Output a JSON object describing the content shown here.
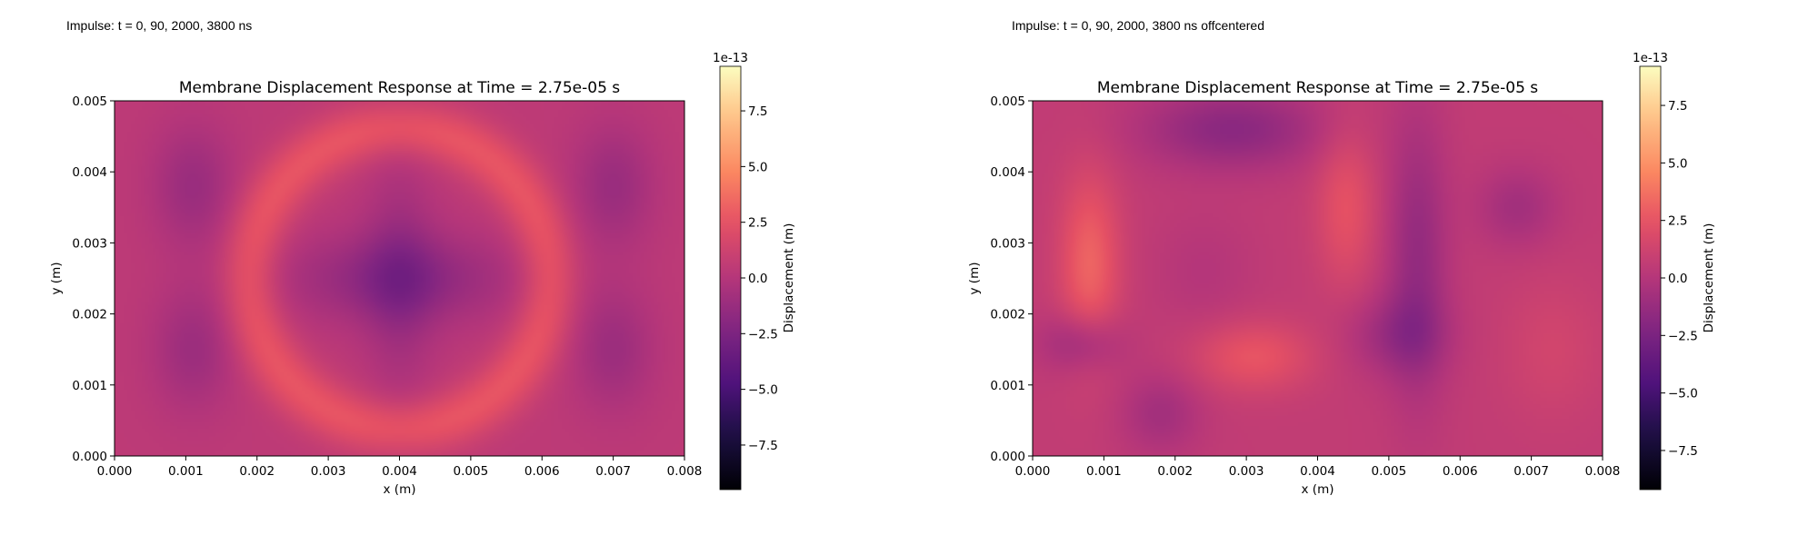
{
  "captions": {
    "left": "Impulse: t = 0, 90, 2000, 3800 ns",
    "right": "Impulse: t = 0, 90, 2000, 3800 ns offcentered"
  },
  "chart_data": [
    {
      "type": "heatmap",
      "title": "Membrane Displacement Response at Time = 2.75e-05 s",
      "xlabel": "x (m)",
      "ylabel": "y (m)",
      "xlim": [
        0.0,
        0.008
      ],
      "ylim": [
        0.0,
        0.005
      ],
      "xticks": [
        "0.000",
        "0.001",
        "0.002",
        "0.003",
        "0.004",
        "0.005",
        "0.006",
        "0.007",
        "0.008"
      ],
      "yticks": [
        "0.000",
        "0.001",
        "0.002",
        "0.003",
        "0.004",
        "0.005"
      ],
      "colormap": "magma",
      "colorbar": {
        "label": "Displacement (m)",
        "offset_text": "1e-13",
        "range": [
          -9.5,
          9.5
        ],
        "ticks": [
          "−7.5",
          "−5.0",
          "−2.5",
          "0.0",
          "2.5",
          "5.0",
          "7.5"
        ],
        "tick_values": [
          -7.5,
          -5.0,
          -2.5,
          0.0,
          2.5,
          5.0,
          7.5
        ]
      },
      "field": {
        "base": 0.4,
        "features": [
          {
            "kind": "ring",
            "cx": 0.004,
            "cy": 0.0025,
            "r": 0.0021,
            "width": 0.00028,
            "amp": 2.3
          },
          {
            "kind": "blob",
            "cx": 0.004,
            "cy": 0.0025,
            "sx": 0.0011,
            "sy": 0.00045,
            "amp": -2.2
          },
          {
            "kind": "blob",
            "cx": 0.004,
            "cy": 0.0025,
            "sx": 0.00035,
            "sy": 0.0012,
            "amp": -1.4
          },
          {
            "kind": "blob",
            "cx": 0.0011,
            "cy": 0.0038,
            "sx": 0.0004,
            "sy": 0.0006,
            "amp": -1.6
          },
          {
            "kind": "blob",
            "cx": 0.0011,
            "cy": 0.0015,
            "sx": 0.0004,
            "sy": 0.0006,
            "amp": -1.5
          },
          {
            "kind": "blob",
            "cx": 0.007,
            "cy": 0.0038,
            "sx": 0.0004,
            "sy": 0.0006,
            "amp": -1.6
          },
          {
            "kind": "blob",
            "cx": 0.007,
            "cy": 0.0015,
            "sx": 0.0004,
            "sy": 0.0006,
            "amp": -1.5
          }
        ]
      }
    },
    {
      "type": "heatmap",
      "title": "Membrane Displacement Response at Time = 2.75e-05 s",
      "xlabel": "x (m)",
      "ylabel": "y (m)",
      "xlim": [
        0.0,
        0.008
      ],
      "ylim": [
        0.0,
        0.005
      ],
      "xticks": [
        "0.000",
        "0.001",
        "0.002",
        "0.003",
        "0.004",
        "0.005",
        "0.006",
        "0.007",
        "0.008"
      ],
      "yticks": [
        "0.000",
        "0.001",
        "0.002",
        "0.003",
        "0.004",
        "0.005"
      ],
      "colormap": "magma",
      "colorbar": {
        "label": "Displacement (m)",
        "offset_text": "1e-13",
        "range": [
          -9.2,
          9.2
        ],
        "ticks": [
          "−7.5",
          "−5.0",
          "−2.5",
          "0.0",
          "2.5",
          "5.0",
          "7.5"
        ],
        "tick_values": [
          -7.5,
          -5.0,
          -2.5,
          0.0,
          2.5,
          5.0,
          7.5
        ]
      },
      "field": {
        "base": 0.6,
        "features": [
          {
            "kind": "blob",
            "cx": 0.0008,
            "cy": 0.0027,
            "sx": 0.0003,
            "sy": 0.0009,
            "amp": 2.6
          },
          {
            "kind": "blob",
            "cx": 0.0044,
            "cy": 0.0035,
            "sx": 0.0003,
            "sy": 0.0008,
            "amp": 1.8
          },
          {
            "kind": "blob",
            "cx": 0.0031,
            "cy": 0.0014,
            "sx": 0.0006,
            "sy": 0.00035,
            "amp": 2.0
          },
          {
            "kind": "blob",
            "cx": 0.0028,
            "cy": 0.0046,
            "sx": 0.0009,
            "sy": 0.0004,
            "amp": -2.4
          },
          {
            "kind": "blob",
            "cx": 0.0054,
            "cy": 0.0028,
            "sx": 0.0003,
            "sy": 0.0014,
            "amp": -2.0
          },
          {
            "kind": "blob",
            "cx": 0.0051,
            "cy": 0.0017,
            "sx": 0.0005,
            "sy": 0.0004,
            "amp": -1.6
          },
          {
            "kind": "blob",
            "cx": 0.0007,
            "cy": 0.0016,
            "sx": 0.0004,
            "sy": 0.0003,
            "amp": -2.0
          },
          {
            "kind": "blob",
            "cx": 0.0018,
            "cy": 0.0006,
            "sx": 0.0004,
            "sy": 0.0004,
            "amp": -1.4
          },
          {
            "kind": "blob",
            "cx": 0.0068,
            "cy": 0.0035,
            "sx": 0.0004,
            "sy": 0.0004,
            "amp": -1.4
          },
          {
            "kind": "blob",
            "cx": 0.0024,
            "cy": 0.0026,
            "sx": 0.0005,
            "sy": 0.0006,
            "amp": -0.6
          },
          {
            "kind": "blob",
            "cx": 0.0073,
            "cy": 0.0015,
            "sx": 0.0005,
            "sy": 0.0007,
            "amp": 0.8
          }
        ]
      }
    }
  ]
}
